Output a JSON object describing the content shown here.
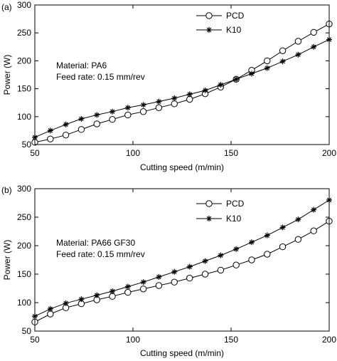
{
  "chart_data": [
    {
      "panel_label": "(a)",
      "type": "line",
      "xlabel": "Cutting speed (m/min)",
      "ylabel": "Power (W)",
      "xlim": [
        50,
        200
      ],
      "ylim": [
        50,
        300
      ],
      "xticks": [
        "50",
        "100",
        "150",
        "200"
      ],
      "yticks": [
        "50",
        "100",
        "150",
        "200",
        "250",
        "300"
      ],
      "grid": false,
      "legend_position": "top-right",
      "annotations": [
        "Material: PA6",
        "Feed rate: 0.15 mm/rev"
      ],
      "x": [
        50,
        57.9,
        65.8,
        73.7,
        81.6,
        89.5,
        97.4,
        105.3,
        113.2,
        121.1,
        128.9,
        136.8,
        144.7,
        152.6,
        160.5,
        168.4,
        176.3,
        184.2,
        192.1,
        200
      ],
      "series": [
        {
          "name": "PCD",
          "marker": "circle",
          "values": [
            54,
            60,
            67,
            77,
            87,
            95,
            103,
            109,
            116,
            123,
            131,
            141,
            153,
            167,
            183,
            200,
            218,
            235,
            251,
            266
          ]
        },
        {
          "name": "K10",
          "marker": "star",
          "values": [
            63,
            75,
            86,
            96,
            103,
            109,
            116,
            121,
            127,
            133,
            140,
            147,
            157,
            167,
            177,
            187,
            199,
            211,
            225,
            238
          ]
        }
      ]
    },
    {
      "panel_label": "(b)",
      "type": "line",
      "xlabel": "Cutting speed (m/min)",
      "ylabel": "Power (W)",
      "xlim": [
        50,
        200
      ],
      "ylim": [
        50,
        300
      ],
      "xticks": [
        "50",
        "100",
        "150",
        "200"
      ],
      "yticks": [
        "50",
        "100",
        "150",
        "200",
        "250",
        "300"
      ],
      "grid": false,
      "legend_position": "top-right",
      "annotations": [
        "Material: PA66 GF30",
        "Feed rate: 0.15 mm/rev"
      ],
      "x": [
        50,
        57.9,
        65.8,
        73.7,
        81.6,
        89.5,
        97.4,
        105.3,
        113.2,
        121.1,
        128.9,
        136.8,
        144.7,
        152.6,
        160.5,
        168.4,
        176.3,
        184.2,
        192.1,
        200
      ],
      "series": [
        {
          "name": "PCD",
          "marker": "circle",
          "values": [
            66,
            80,
            91,
            98,
            105,
            111,
            118,
            124,
            130,
            136,
            143,
            150,
            157,
            166,
            175,
            185,
            198,
            211,
            226,
            243
          ]
        },
        {
          "name": "K10",
          "marker": "star",
          "values": [
            76,
            89,
            99,
            106,
            113,
            120,
            128,
            136,
            145,
            154,
            163,
            173,
            183,
            194,
            206,
            218,
            232,
            246,
            263,
            280
          ]
        }
      ]
    }
  ]
}
